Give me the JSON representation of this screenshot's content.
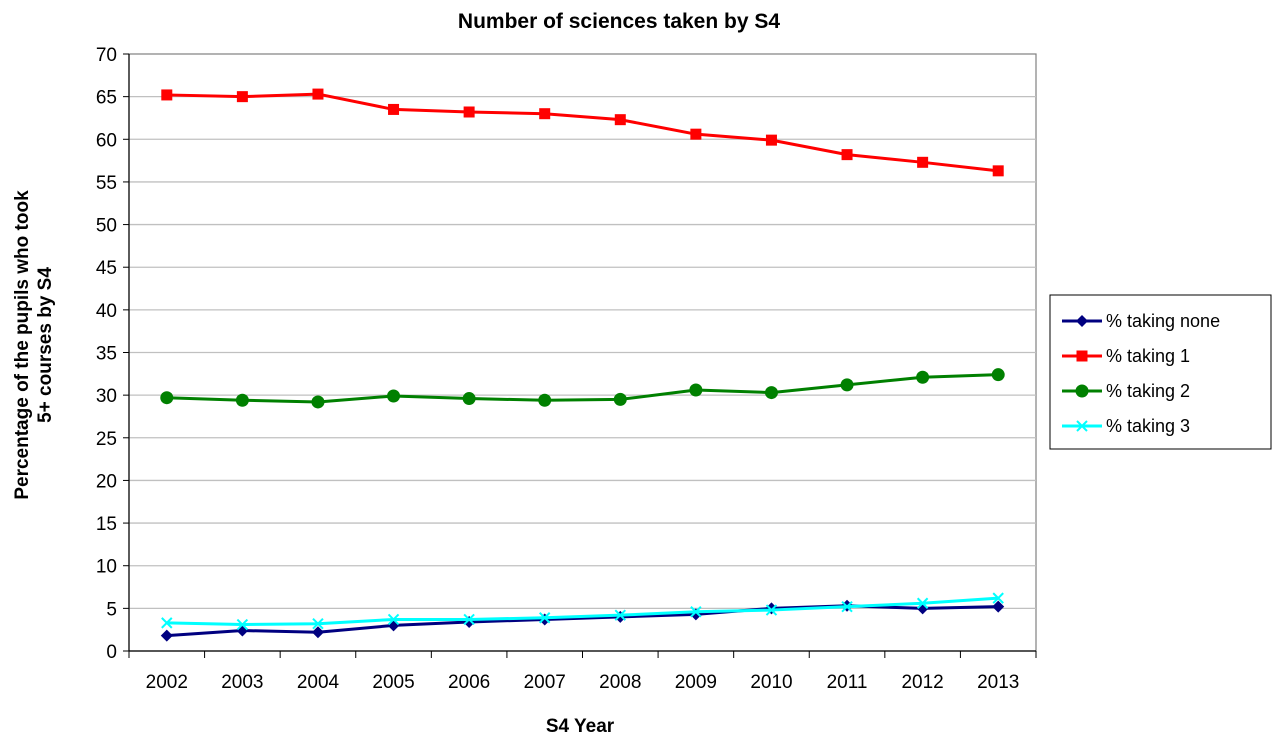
{
  "chart_data": {
    "type": "line",
    "title": "Number of sciences taken by S4",
    "xlabel": "S4 Year",
    "ylabel_lines": [
      "Percentage of the pupils who took",
      "5+ courses by S4"
    ],
    "categories": [
      "2002",
      "2003",
      "2004",
      "2005",
      "2006",
      "2007",
      "2008",
      "2009",
      "2010",
      "2011",
      "2012",
      "2013"
    ],
    "ylim": [
      0,
      70
    ],
    "yticks": [
      0,
      5,
      10,
      15,
      20,
      25,
      30,
      35,
      40,
      45,
      50,
      55,
      60,
      65,
      70
    ],
    "grid": true,
    "legend_position": "right",
    "series": [
      {
        "name": "% taking none",
        "color": "#000080",
        "marker": "diamond",
        "values": [
          1.8,
          2.4,
          2.2,
          3.0,
          3.4,
          3.7,
          4.0,
          4.3,
          5.0,
          5.3,
          5.0,
          5.2
        ]
      },
      {
        "name": "% taking 1",
        "color": "#ff0000",
        "marker": "square",
        "values": [
          65.2,
          65.0,
          65.3,
          63.5,
          63.2,
          63.0,
          62.3,
          60.6,
          59.9,
          58.2,
          57.3,
          56.3
        ]
      },
      {
        "name": "% taking 2",
        "color": "#008000",
        "marker": "circle",
        "values": [
          29.7,
          29.4,
          29.2,
          29.9,
          29.6,
          29.4,
          29.5,
          30.6,
          30.3,
          31.2,
          32.1,
          32.4
        ]
      },
      {
        "name": "% taking 3",
        "color": "#00ffff",
        "marker": "x",
        "values": [
          3.3,
          3.1,
          3.2,
          3.7,
          3.7,
          3.9,
          4.2,
          4.6,
          4.8,
          5.2,
          5.6,
          6.2
        ]
      }
    ]
  }
}
